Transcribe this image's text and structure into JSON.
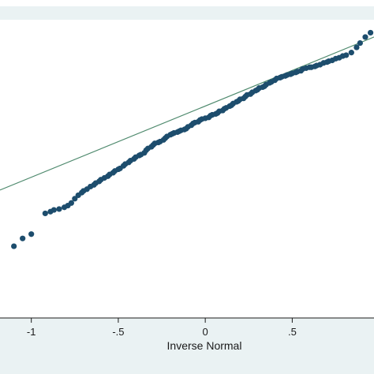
{
  "chart_data": {
    "type": "scatter",
    "title": "",
    "xlabel": "Inverse Normal",
    "ylabel": "",
    "xlim": [
      -1.18,
      0.97
    ],
    "ylim": [
      -1.9,
      1.55
    ],
    "x_ticks": [
      {
        "value": -1,
        "label": "-1"
      },
      {
        "value": -0.5,
        "label": "-.5"
      },
      {
        "value": 0,
        "label": "0"
      },
      {
        "value": 0.5,
        "label": ".5"
      }
    ],
    "reference_line": {
      "from": [
        -1.18,
        -0.42
      ],
      "to": [
        0.97,
        1.35
      ],
      "color": "#4f8a6e"
    },
    "marker_color": "#1d4d6d",
    "grid": false,
    "series": [
      {
        "x": [
          -1.1,
          -1.05,
          -1.0,
          -0.92,
          -0.89,
          -0.87,
          -0.84,
          -0.81,
          -0.79,
          -0.77,
          -0.75,
          -0.73,
          -0.71,
          -0.7,
          -0.68,
          -0.66,
          -0.64,
          -0.63,
          -0.61,
          -0.6,
          -0.58,
          -0.56,
          -0.55,
          -0.53,
          -0.52,
          -0.5,
          -0.49,
          -0.47,
          -0.46,
          -0.44,
          -0.43,
          -0.41,
          -0.4,
          -0.38,
          -0.37,
          -0.35,
          -0.34,
          -0.33,
          -0.31,
          -0.3,
          -0.29,
          -0.27,
          -0.26,
          -0.24,
          -0.23,
          -0.22,
          -0.2,
          -0.19,
          -0.18,
          -0.16,
          -0.15,
          -0.14,
          -0.12,
          -0.11,
          -0.1,
          -0.08,
          -0.07,
          -0.06,
          -0.04,
          -0.03,
          -0.02,
          0.0,
          0.02,
          0.03,
          0.04,
          0.06,
          0.07,
          0.08,
          0.1,
          0.11,
          0.12,
          0.14,
          0.15,
          0.16,
          0.18,
          0.19,
          0.2,
          0.22,
          0.23,
          0.24,
          0.26,
          0.27,
          0.29,
          0.3,
          0.31,
          0.33,
          0.34,
          0.35,
          0.37,
          0.38,
          0.4,
          0.41,
          0.43,
          0.44,
          0.46,
          0.47,
          0.49,
          0.5,
          0.52,
          0.53,
          0.55,
          0.56,
          0.58,
          0.6,
          0.61,
          0.63,
          0.64,
          0.66,
          0.68,
          0.7,
          0.71,
          0.73,
          0.75,
          0.77,
          0.79,
          0.81,
          0.84,
          0.87,
          0.89,
          0.92,
          0.95
        ],
        "y": [
          -1.07,
          -0.98,
          -0.93,
          -0.69,
          -0.67,
          -0.65,
          -0.64,
          -0.62,
          -0.6,
          -0.57,
          -0.52,
          -0.48,
          -0.45,
          -0.43,
          -0.41,
          -0.38,
          -0.36,
          -0.34,
          -0.32,
          -0.3,
          -0.28,
          -0.26,
          -0.24,
          -0.22,
          -0.2,
          -0.18,
          -0.17,
          -0.14,
          -0.12,
          -0.1,
          -0.08,
          -0.06,
          -0.04,
          -0.02,
          -0.01,
          0.01,
          0.04,
          0.06,
          0.08,
          0.1,
          0.12,
          0.13,
          0.14,
          0.16,
          0.18,
          0.2,
          0.22,
          0.23,
          0.24,
          0.25,
          0.26,
          0.27,
          0.28,
          0.29,
          0.31,
          0.33,
          0.35,
          0.36,
          0.37,
          0.39,
          0.4,
          0.41,
          0.42,
          0.44,
          0.45,
          0.46,
          0.47,
          0.49,
          0.5,
          0.52,
          0.53,
          0.55,
          0.56,
          0.58,
          0.6,
          0.61,
          0.63,
          0.64,
          0.66,
          0.68,
          0.69,
          0.71,
          0.73,
          0.74,
          0.76,
          0.77,
          0.78,
          0.8,
          0.82,
          0.83,
          0.85,
          0.87,
          0.88,
          0.89,
          0.9,
          0.91,
          0.92,
          0.93,
          0.94,
          0.95,
          0.96,
          0.98,
          0.99,
          1.0,
          1.0,
          1.01,
          1.02,
          1.03,
          1.05,
          1.06,
          1.07,
          1.08,
          1.1,
          1.11,
          1.13,
          1.14,
          1.17,
          1.23,
          1.28,
          1.35,
          1.4
        ]
      }
    ]
  }
}
